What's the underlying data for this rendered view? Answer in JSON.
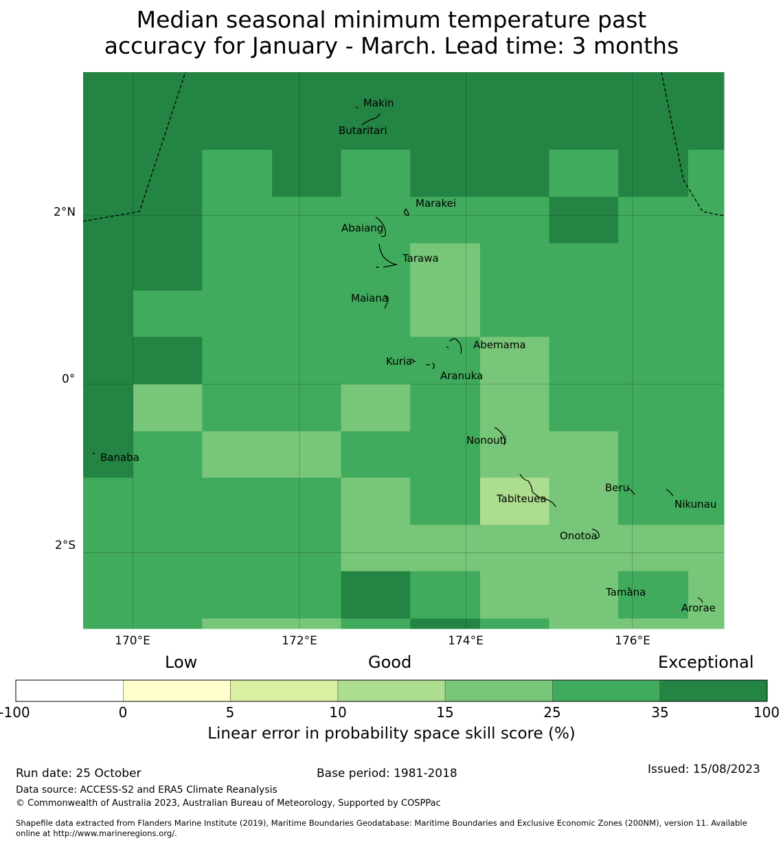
{
  "title": {
    "line1": "Median seasonal minimum temperature past",
    "line2": "accuracy for January - March. Lead time: 3 months"
  },
  "map": {
    "lon_range": [
      169.4,
      177.1
    ],
    "lat_range": [
      -2.9,
      3.7
    ],
    "x_ticks": [
      "170°E",
      "172°E",
      "174°E",
      "176°E"
    ],
    "y_ticks": [
      "2°N",
      "0°",
      "2°S"
    ],
    "cell_lon_edges": [
      169.4,
      170.0,
      170.83,
      171.67,
      172.5,
      173.33,
      174.17,
      175.0,
      175.83,
      176.67,
      177.1
    ],
    "cell_lat_edges": [
      3.7,
      2.78,
      2.22,
      1.67,
      1.11,
      0.56,
      0.0,
      -0.56,
      -1.11,
      -1.67,
      -2.22,
      -2.78,
      -2.9
    ],
    "cells": [
      [
        6,
        6,
        6,
        6,
        6,
        6,
        6,
        6,
        6,
        6
      ],
      [
        6,
        6,
        5,
        6,
        5,
        6,
        6,
        5,
        6,
        5
      ],
      [
        6,
        6,
        5,
        5,
        5,
        5,
        5,
        6,
        5,
        5
      ],
      [
        6,
        6,
        5,
        5,
        5,
        4,
        5,
        5,
        5,
        5
      ],
      [
        6,
        5,
        5,
        5,
        5,
        4,
        5,
        5,
        5,
        5
      ],
      [
        6,
        6,
        5,
        5,
        5,
        5,
        4,
        5,
        5,
        5
      ],
      [
        6,
        4,
        5,
        5,
        4,
        5,
        4,
        5,
        5,
        5
      ],
      [
        6,
        5,
        4,
        4,
        5,
        5,
        4,
        4,
        5,
        5
      ],
      [
        5,
        5,
        5,
        5,
        4,
        5,
        3,
        4,
        5,
        5
      ],
      [
        5,
        5,
        5,
        5,
        4,
        4,
        4,
        4,
        4,
        4
      ],
      [
        5,
        5,
        5,
        5,
        6,
        5,
        4,
        4,
        5,
        4
      ],
      [
        5,
        5,
        4,
        4,
        5,
        6,
        5,
        4,
        4,
        4
      ]
    ],
    "islands": [
      {
        "name": "Makin"
      },
      {
        "name": "Butaritari"
      },
      {
        "name": "Marakei"
      },
      {
        "name": "Abaiang"
      },
      {
        "name": "Tarawa"
      },
      {
        "name": "Maiana"
      },
      {
        "name": "Abemama"
      },
      {
        "name": "Kuria"
      },
      {
        "name": "Aranuka"
      },
      {
        "name": "Nonouti"
      },
      {
        "name": "Banaba"
      },
      {
        "name": "Beru"
      },
      {
        "name": "Tabiteuea"
      },
      {
        "name": "Nikunau"
      },
      {
        "name": "Onotoa"
      },
      {
        "name": "Tamana"
      },
      {
        "name": "Arorae"
      }
    ]
  },
  "colorbar": {
    "colors": [
      "#ffffff",
      "#ffffcc",
      "#d9f0a3",
      "#addd8e",
      "#78c679",
      "#41ab5d",
      "#238443"
    ],
    "ticks": [
      "-100",
      "0",
      "5",
      "10",
      "15",
      "25",
      "35",
      "100"
    ],
    "category_labels": {
      "low": "Low",
      "good": "Good",
      "exceptional": "Exceptional"
    },
    "label": "Linear error in probability space skill score (%)"
  },
  "footer": {
    "run_date": "Run date: 25 October",
    "base_period": "Base period: 1981-2018",
    "issued": "Issued: 15/08/2023",
    "data_source": "Data source: ACCESS-S2 and ERA5 Climate Reanalysis",
    "copyright": "© Commonwealth of Australia 2023, Australian Bureau of Meteorology, Supported by COSPPac",
    "shapefile_line1": "Shapefile data extracted from Flanders Marine Institute (2019), Maritime Boundaries Geodatabase: Maritime Boundaries and Exclusive Economic Zones (200NM), version 11. Available",
    "shapefile_line2": "online at http://www.marineregions.org/."
  }
}
